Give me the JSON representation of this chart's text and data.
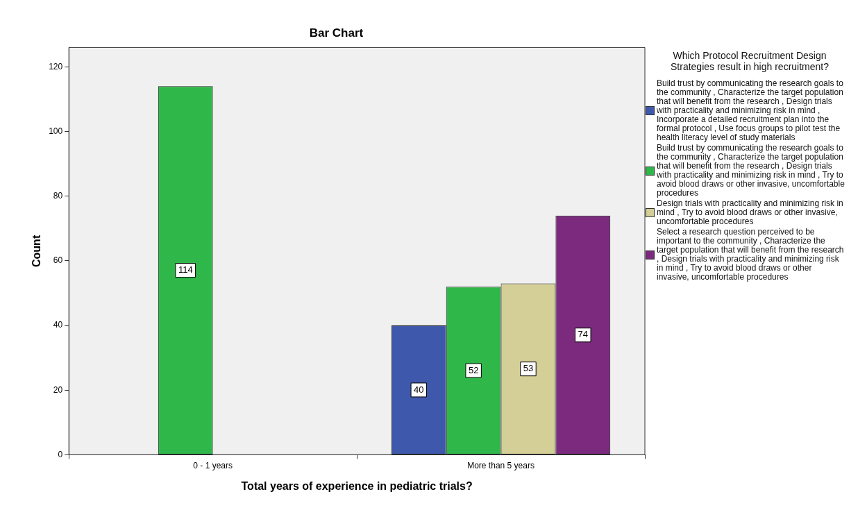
{
  "chart_data": {
    "type": "bar",
    "title": "Bar Chart",
    "xlabel": "Total years of experience in pediatric trials?",
    "ylabel": "Count",
    "legend_title": "Which Protocol Recruitment Design Strategies result in high recruitment?",
    "categories": [
      "0 - 1 years",
      "More than 5 years"
    ],
    "series": [
      {
        "name": "Build trust by communicating the research goals to the community , Characterize the target population that will benefit from the research , Design trials with practicality and minimizing risk in mind , Incorporate a detailed recruitment plan into the formal protocol , Use focus groups to pilot test the health literacy level of study materials",
        "color": "#3e58ac",
        "values": [
          null,
          40
        ]
      },
      {
        "name": "Build trust by communicating the research goals to the community , Characterize the target population that will benefit from the research , Design trials with practicality and minimizing risk in mind , Try to avoid blood draws or other invasive, uncomfortable procedures",
        "color": "#2fb74a",
        "values": [
          114,
          52
        ]
      },
      {
        "name": "Design trials with practicality and minimizing risk in mind , Try to avoid blood draws or other invasive, uncomfortable procedures",
        "color": "#d4ce97",
        "values": [
          null,
          53
        ]
      },
      {
        "name": "Select a research question perceived to be important to the community , Characterize the target population that will benefit from the research , Design trials with practicality and minimizing risk in mind , Try to avoid blood draws or other invasive, uncomfortable procedures",
        "color": "#7b2a7e",
        "values": [
          null,
          74
        ]
      }
    ],
    "ylim": [
      0,
      126
    ],
    "yticks": [
      0,
      20,
      40,
      60,
      80,
      100,
      120
    ],
    "grid": false,
    "legend": "right",
    "data_labels": true
  }
}
